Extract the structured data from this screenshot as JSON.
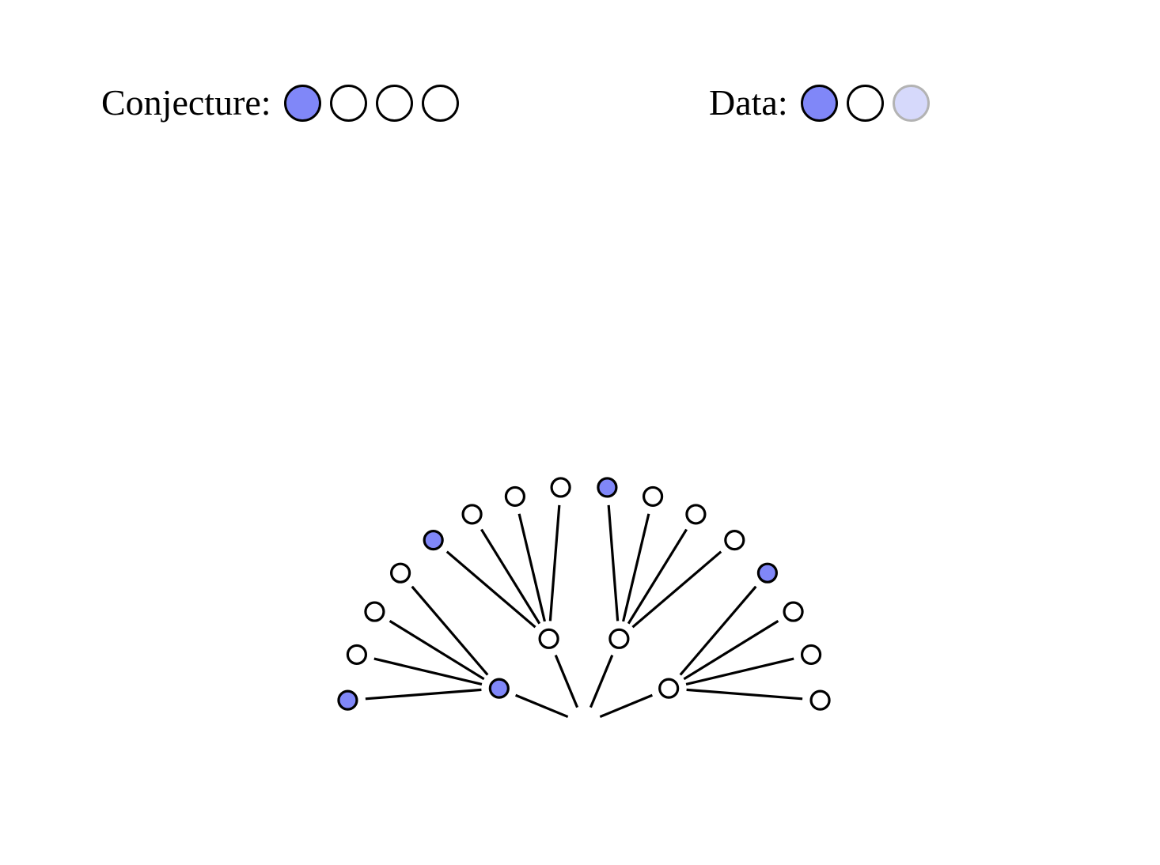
{
  "colors": {
    "filled": "#8087f8",
    "empty": "#ffffff",
    "faded": "#d6d9fb",
    "stroke": "#000000",
    "faded_stroke": "#b3b3b3"
  },
  "legend": {
    "conjecture": {
      "label": "Conjecture:",
      "marbles": [
        "filled",
        "empty",
        "empty",
        "empty"
      ]
    },
    "data": {
      "label": "Data:",
      "marbles": [
        "filled",
        "empty",
        "faded"
      ]
    }
  },
  "tree": {
    "branches": [
      {
        "state": "filled",
        "leaves": [
          "filled",
          "empty",
          "empty",
          "empty"
        ]
      },
      {
        "state": "empty",
        "leaves": [
          "filled",
          "empty",
          "empty",
          "empty"
        ]
      },
      {
        "state": "empty",
        "leaves": [
          "filled",
          "empty",
          "empty",
          "empty"
        ]
      },
      {
        "state": "empty",
        "leaves": [
          "filled",
          "empty",
          "empty",
          "empty"
        ]
      }
    ]
  }
}
